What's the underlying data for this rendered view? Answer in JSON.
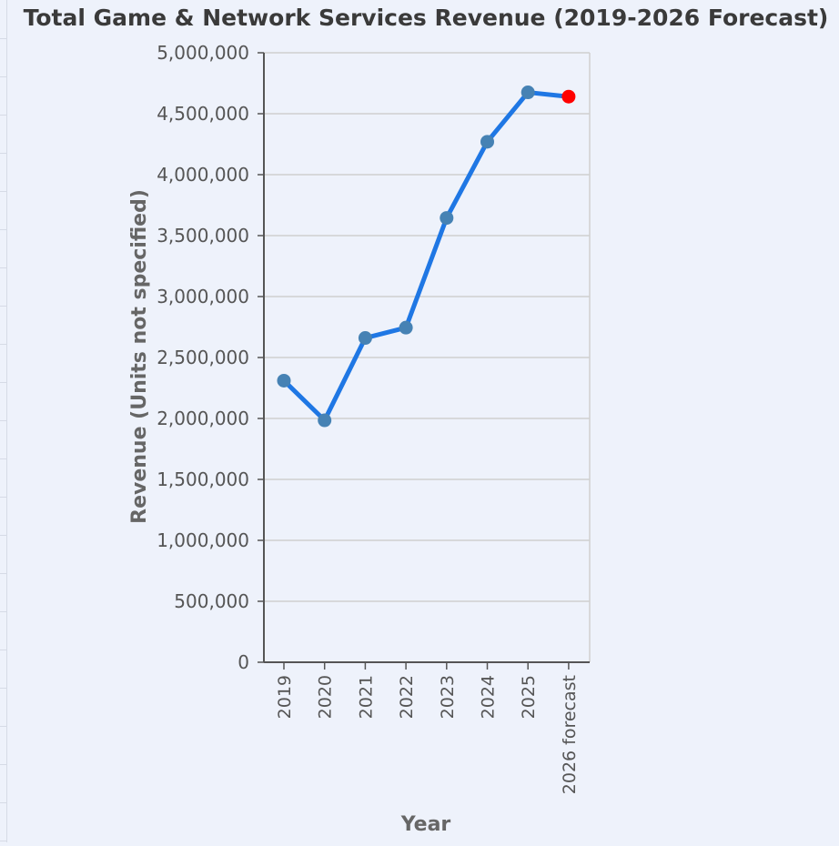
{
  "chart_data": {
    "type": "line",
    "title": "Total Game & Network Services Revenue (2019-2026 Forecast)",
    "xlabel": "Year",
    "ylabel": "Revenue (Units not specified)",
    "categories": [
      "2019",
      "2020",
      "2021",
      "2022",
      "2023",
      "2024",
      "2025",
      "2026 forecast"
    ],
    "series": [
      {
        "values": [
          2310000,
          1985000,
          2660000,
          2745000,
          3645000,
          4270000,
          4675000,
          4640000
        ]
      }
    ],
    "ylim": [
      0,
      5000000
    ],
    "yticks": [
      0,
      500000,
      1000000,
      1500000,
      2000000,
      2500000,
      3000000,
      3500000,
      4000000,
      4500000,
      5000000
    ],
    "ytick_labels": [
      "0",
      "500,000",
      "1,000,000",
      "1,500,000",
      "2,000,000",
      "2,500,000",
      "3,000,000",
      "3,500,000",
      "4,000,000",
      "4,500,000",
      "5,000,000"
    ],
    "grid": true,
    "colors": {
      "line": "#1f77e4",
      "point": "#4682b4",
      "forecast_point": "#ff0000",
      "grid": "#cfcfcf",
      "axis": "#555555",
      "text": "#555555"
    }
  }
}
